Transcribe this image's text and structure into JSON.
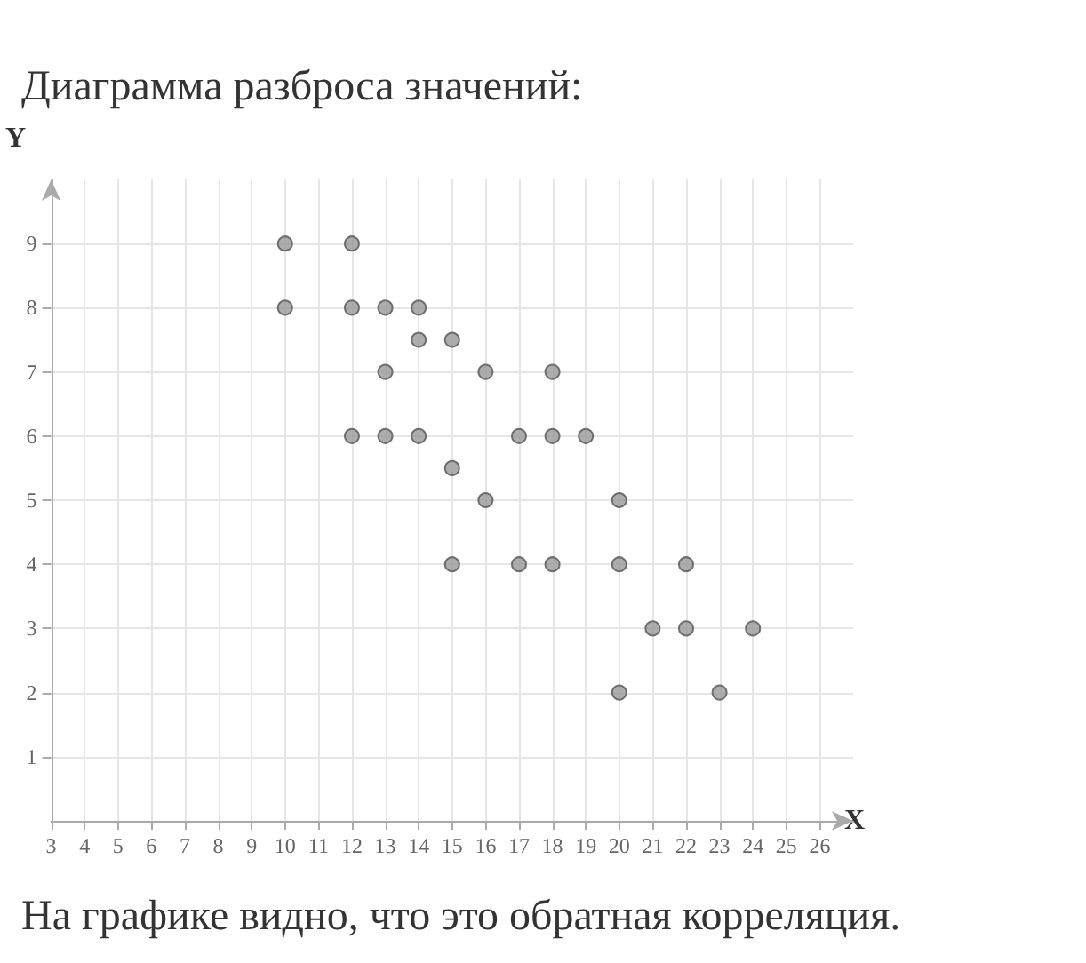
{
  "chart_data": {
    "type": "scatter",
    "title": "Диаграмма разброса значений:",
    "xlabel": "X",
    "ylabel": "Y",
    "annotations": [
      "На графике видно, что это обратная корреляция."
    ],
    "x": [
      10,
      12,
      10,
      12,
      13,
      14,
      14,
      15,
      13,
      16,
      18,
      12,
      13,
      14,
      17,
      18,
      19,
      15,
      16,
      20,
      15,
      17,
      18,
      20,
      22,
      21,
      22,
      24,
      20,
      23
    ],
    "series": [
      {
        "color": "#999999",
        "values": [
          9,
          9,
          8,
          8,
          8,
          8,
          7.5,
          7.5,
          7,
          7,
          7,
          6,
          6,
          6,
          6,
          6,
          6,
          5.5,
          5,
          5,
          4,
          4,
          4,
          4,
          4,
          3,
          3,
          3,
          2,
          2
        ]
      }
    ],
    "xlim": [
      3,
      27
    ],
    "xticks": [
      3,
      4,
      5,
      6,
      7,
      8,
      9,
      10,
      11,
      12,
      13,
      14,
      15,
      16,
      17,
      18,
      19,
      20,
      21,
      22,
      23,
      24,
      25,
      26
    ],
    "ylim": [
      0,
      10
    ],
    "yticks": [
      1,
      2,
      3,
      4,
      5,
      6,
      7,
      8,
      9
    ],
    "grid": true,
    "marker": "circle"
  }
}
